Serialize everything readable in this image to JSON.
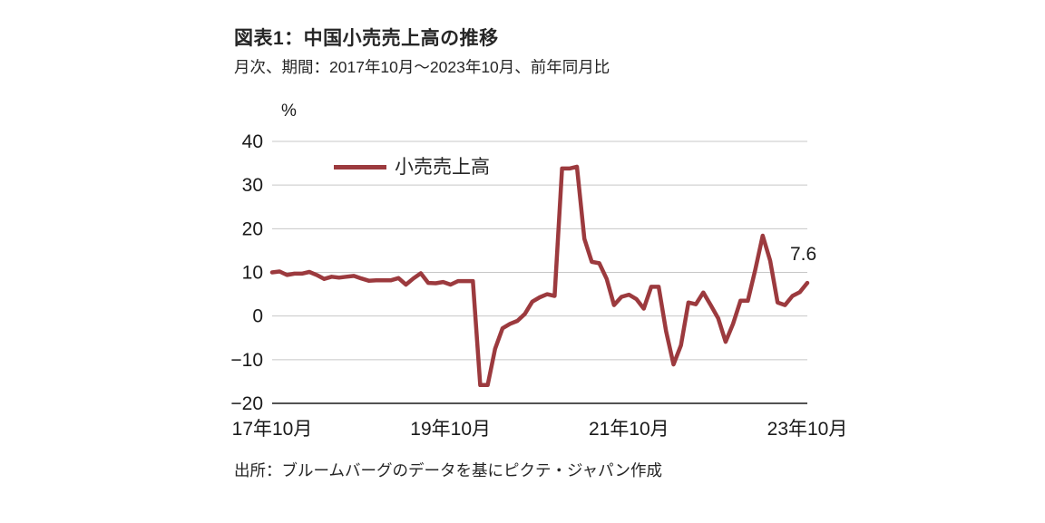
{
  "page": {
    "title": "図表1：中国小売売上高の推移",
    "subtitle": "月次、期間：2017年10月～2023年10月、前年同月比",
    "source": "出所：ブルームバーグのデータを基にピクテ・ジャパン作成"
  },
  "colors": {
    "line": "#9c3a3e",
    "grid": "#c7c7c7",
    "axis": "#1a1a1a",
    "text": "#1a1a1a"
  },
  "chart_data": {
    "type": "line",
    "title": "図表1：中国小売売上高の推移",
    "subtitle": "月次、期間：2017年10月～2023年10月、前年同月比",
    "unit_label": "%",
    "ylim": [
      -20,
      40
    ],
    "yticks": [
      40,
      30,
      20,
      10,
      0,
      -10,
      -20
    ],
    "grid": "horizontal",
    "legend_position": "top-left-inside",
    "xtick_labels": [
      "17年10月",
      "19年10月",
      "21年10月",
      "23年10月"
    ],
    "xtick_indices": [
      0,
      24,
      48,
      72
    ],
    "annotation": {
      "text": "7.6",
      "value": 7.6,
      "at_x": "2023-10"
    },
    "x": [
      "2017-10",
      "2017-11",
      "2017-12",
      "2018-01",
      "2018-02",
      "2018-03",
      "2018-04",
      "2018-05",
      "2018-06",
      "2018-07",
      "2018-08",
      "2018-09",
      "2018-10",
      "2018-11",
      "2018-12",
      "2019-01",
      "2019-02",
      "2019-03",
      "2019-04",
      "2019-05",
      "2019-06",
      "2019-07",
      "2019-08",
      "2019-09",
      "2019-10",
      "2019-11",
      "2019-12",
      "2020-01",
      "2020-02",
      "2020-03",
      "2020-04",
      "2020-05",
      "2020-06",
      "2020-07",
      "2020-08",
      "2020-09",
      "2020-10",
      "2020-11",
      "2020-12",
      "2021-01",
      "2021-02",
      "2021-03",
      "2021-04",
      "2021-05",
      "2021-06",
      "2021-07",
      "2021-08",
      "2021-09",
      "2021-10",
      "2021-11",
      "2021-12",
      "2022-01",
      "2022-02",
      "2022-03",
      "2022-04",
      "2022-05",
      "2022-06",
      "2022-07",
      "2022-08",
      "2022-09",
      "2022-10",
      "2022-11",
      "2022-12",
      "2023-01",
      "2023-02",
      "2023-03",
      "2023-04",
      "2023-05",
      "2023-06",
      "2023-07",
      "2023-08",
      "2023-09",
      "2023-10"
    ],
    "series": [
      {
        "name": "小売売上高",
        "color": "#9c3a3e",
        "values": [
          10.0,
          10.2,
          9.4,
          9.7,
          9.7,
          10.1,
          9.4,
          8.5,
          9.0,
          8.8,
          9.0,
          9.2,
          8.6,
          8.1,
          8.2,
          8.2,
          8.2,
          8.7,
          7.2,
          8.6,
          9.8,
          7.6,
          7.5,
          7.8,
          7.2,
          8.0,
          8.0,
          8.0,
          -15.8,
          -15.8,
          -7.5,
          -2.8,
          -1.8,
          -1.1,
          0.5,
          3.3,
          4.3,
          5.0,
          4.6,
          33.8,
          33.8,
          34.2,
          17.7,
          12.4,
          12.1,
          8.5,
          2.5,
          4.4,
          4.9,
          3.9,
          1.7,
          6.7,
          6.7,
          -3.5,
          -11.1,
          -6.7,
          3.1,
          2.7,
          5.4,
          2.5,
          -0.5,
          -5.9,
          -1.8,
          3.5,
          3.5,
          10.6,
          18.4,
          12.7,
          3.1,
          2.5,
          4.6,
          5.5,
          7.6
        ]
      }
    ]
  }
}
